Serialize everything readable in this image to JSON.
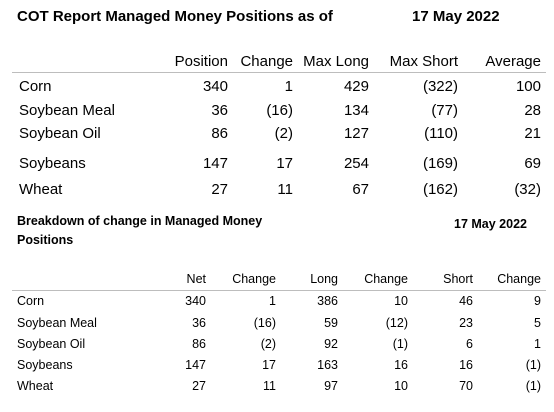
{
  "table1": {
    "title": "COT Report Managed Money Positions as of",
    "date": "17 May 2022",
    "headers": [
      "Position",
      "Change",
      "Max Long",
      "Max Short",
      "Average"
    ],
    "rows": [
      {
        "name": "Corn",
        "values": [
          "340",
          "1",
          "429",
          "(322)",
          "100"
        ]
      },
      {
        "name": "Soybean Meal",
        "values": [
          "36",
          "(16)",
          "134",
          "(77)",
          "28"
        ]
      },
      {
        "name": "Soybean Oil",
        "values": [
          "86",
          "(2)",
          "127",
          "(110)",
          "21"
        ]
      },
      {
        "name": "Soybeans",
        "values": [
          "147",
          "17",
          "254",
          "(169)",
          "69"
        ]
      },
      {
        "name": "Wheat",
        "values": [
          "27",
          "11",
          "67",
          "(162)",
          "(32)"
        ]
      }
    ]
  },
  "table2": {
    "title_line1": "Breakdown of change in Managed Money",
    "title_line2": "Positions",
    "date": "17 May 2022",
    "headers": [
      "Net",
      "Change",
      "Long",
      "Change",
      "Short",
      "Change"
    ],
    "rows": [
      {
        "name": "Corn",
        "values": [
          "340",
          "1",
          "386",
          "10",
          "46",
          "9"
        ]
      },
      {
        "name": "Soybean Meal",
        "values": [
          "36",
          "(16)",
          "59",
          "(12)",
          "23",
          "5"
        ]
      },
      {
        "name": "Soybean Oil",
        "values": [
          "86",
          "(2)",
          "92",
          "(1)",
          "6",
          "1"
        ]
      },
      {
        "name": "Soybeans",
        "values": [
          "147",
          "17",
          "163",
          "16",
          "16",
          "(1)"
        ]
      },
      {
        "name": "Wheat",
        "values": [
          "27",
          "11",
          "97",
          "10",
          "70",
          "(1)"
        ]
      }
    ]
  }
}
